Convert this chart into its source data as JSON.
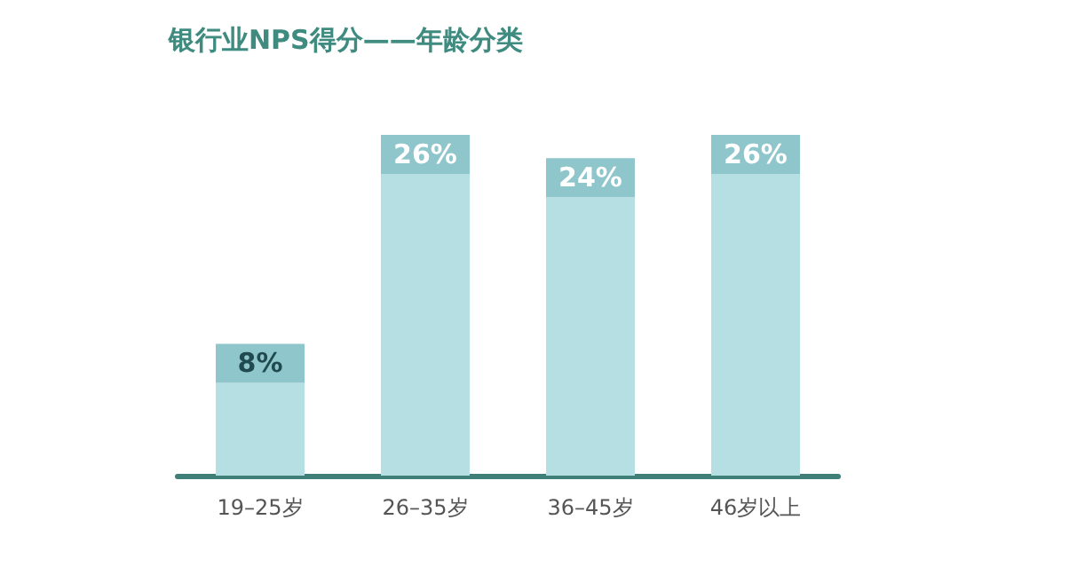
{
  "chart_data": {
    "type": "bar",
    "title": "银行业NPS得分——年龄分类",
    "categories": [
      "19–25岁",
      "26–35岁",
      "36–45岁",
      "46岁以上"
    ],
    "values": [
      8,
      26,
      24,
      26
    ],
    "color": "#b5dfe3",
    "value_labels": [
      "8%",
      "26%",
      "24%",
      "26%"
    ]
  }
}
